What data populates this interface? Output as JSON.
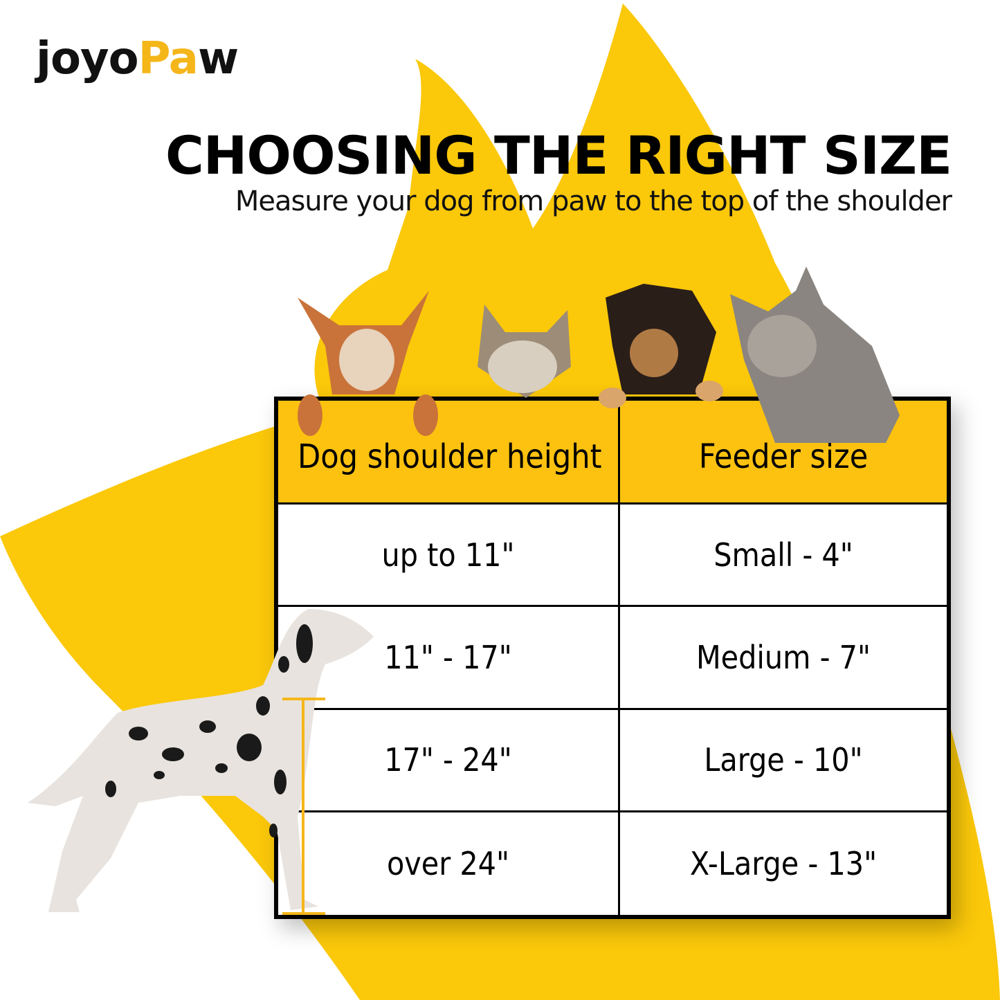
{
  "brand": {
    "logo_text_dark": "joyo",
    "logo_text_accent": "Pa",
    "logo_text_end": "w",
    "accent_color": "#F5B61A"
  },
  "header": {
    "title": "CHOOSING THE RIGHT SIZE",
    "subtitle": "Measure your dog from paw to the top of the shoulder"
  },
  "size_table": {
    "headers": [
      "Dog shoulder height",
      "Feeder size"
    ],
    "rows": [
      [
        "up to 11\"",
        "Small - 4\""
      ],
      [
        "11\" - 17\"",
        "Medium - 7\""
      ],
      [
        "17\" - 24\"",
        "Large - 10\""
      ],
      [
        "over 24\"",
        "X-Large - 13\""
      ]
    ],
    "header_color": "#FDC20F"
  },
  "colors": {
    "background_shape": "#FBC80A"
  }
}
